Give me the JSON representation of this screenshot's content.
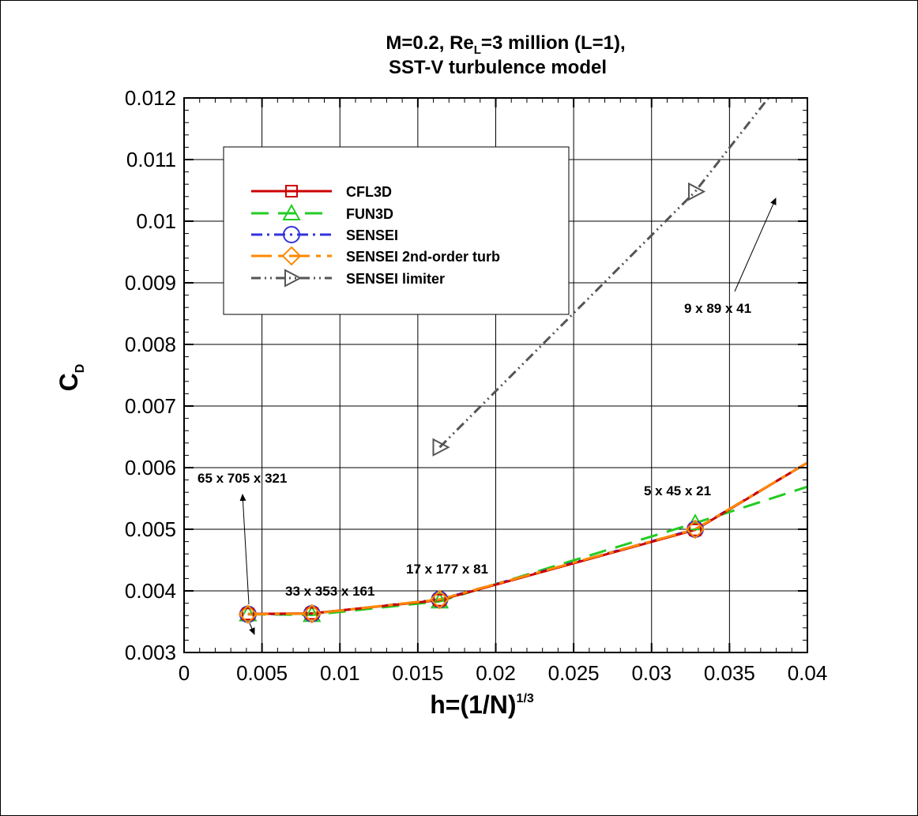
{
  "chart_data": {
    "type": "line",
    "title_line1": "M=0.2, Re",
    "title_sub": "L",
    "title_line1_rest": "=3 million (L=1),",
    "title_line2": "SST-V turbulence model",
    "xlabel": "h=(1/N)",
    "xlabel_sup": "1/3",
    "ylabel": "C",
    "ylabel_sub": "D",
    "xlim": [
      0,
      0.04
    ],
    "ylim": [
      0.003,
      0.012
    ],
    "xticks": [
      "0",
      "0.005",
      "0.01",
      "0.015",
      "0.02",
      "0.025",
      "0.03",
      "0.035",
      "0.04"
    ],
    "yticks": [
      "0.003",
      "0.004",
      "0.005",
      "0.006",
      "0.007",
      "0.008",
      "0.009",
      "0.01",
      "0.011",
      "0.012"
    ],
    "grid": true,
    "legend_position": "upper-left",
    "series": [
      {
        "name": "CFL3D",
        "color": "#cc0000",
        "dash": "solid",
        "marker": "square",
        "x": [
          0.0041,
          0.0082,
          0.0164,
          0.0328
        ],
        "y": [
          0.003625,
          0.003635,
          0.00385,
          0.00499
        ],
        "line_x": [
          0.0041,
          0.0082,
          0.0164,
          0.0328,
          0.04
        ],
        "line_y": [
          0.003625,
          0.003635,
          0.00385,
          0.00499,
          0.00608
        ]
      },
      {
        "name": "FUN3D",
        "color": "#22cc22",
        "dash": "long",
        "marker": "triangle",
        "x": [
          0.0041,
          0.0082,
          0.0164,
          0.0328
        ],
        "y": [
          0.00362,
          0.00361,
          0.00383,
          0.0051
        ],
        "line_x": [
          0.0041,
          0.0082,
          0.0164,
          0.0328,
          0.04
        ],
        "line_y": [
          0.00362,
          0.00361,
          0.00383,
          0.0051,
          0.00569
        ]
      },
      {
        "name": "SENSEI",
        "color": "#3333dd",
        "dash": "dashdot",
        "marker": "circle",
        "x": [
          0.0041,
          0.0082,
          0.0164,
          0.0328
        ],
        "y": [
          0.00362,
          0.00363,
          0.00386,
          0.005
        ],
        "line_x": [
          0.0041,
          0.0082,
          0.0164,
          0.0328,
          0.04
        ],
        "line_y": [
          0.00362,
          0.00363,
          0.00386,
          0.005,
          0.00608
        ]
      },
      {
        "name": "SENSEI 2nd-order turb",
        "color": "#ff8800",
        "dash": "longdash",
        "marker": "diamond",
        "x": [
          0.0041,
          0.0082,
          0.0164,
          0.0328
        ],
        "y": [
          0.00362,
          0.00363,
          0.00386,
          0.005
        ],
        "line_x": [
          0.0041,
          0.0082,
          0.0164,
          0.0328,
          0.04
        ],
        "line_y": [
          0.00362,
          0.00363,
          0.00386,
          0.005,
          0.00608
        ]
      },
      {
        "name": "SENSEI limiter",
        "color": "#555555",
        "dash": "dashdotdot",
        "marker": "triangle-right",
        "x": [
          0.0164,
          0.0328
        ],
        "y": [
          0.00633,
          0.01048
        ],
        "line_x": [
          0.0164,
          0.0328,
          0.0375
        ],
        "line_y": [
          0.00633,
          0.01048,
          0.012
        ]
      }
    ],
    "annotations": [
      {
        "text": "65 x 705 x 321"
      },
      {
        "text": "33 x 353 x 161"
      },
      {
        "text": "17 x 177 x 81"
      },
      {
        "text": "5 x 45 x 21"
      },
      {
        "text": "9 x 89 x 41"
      }
    ]
  }
}
